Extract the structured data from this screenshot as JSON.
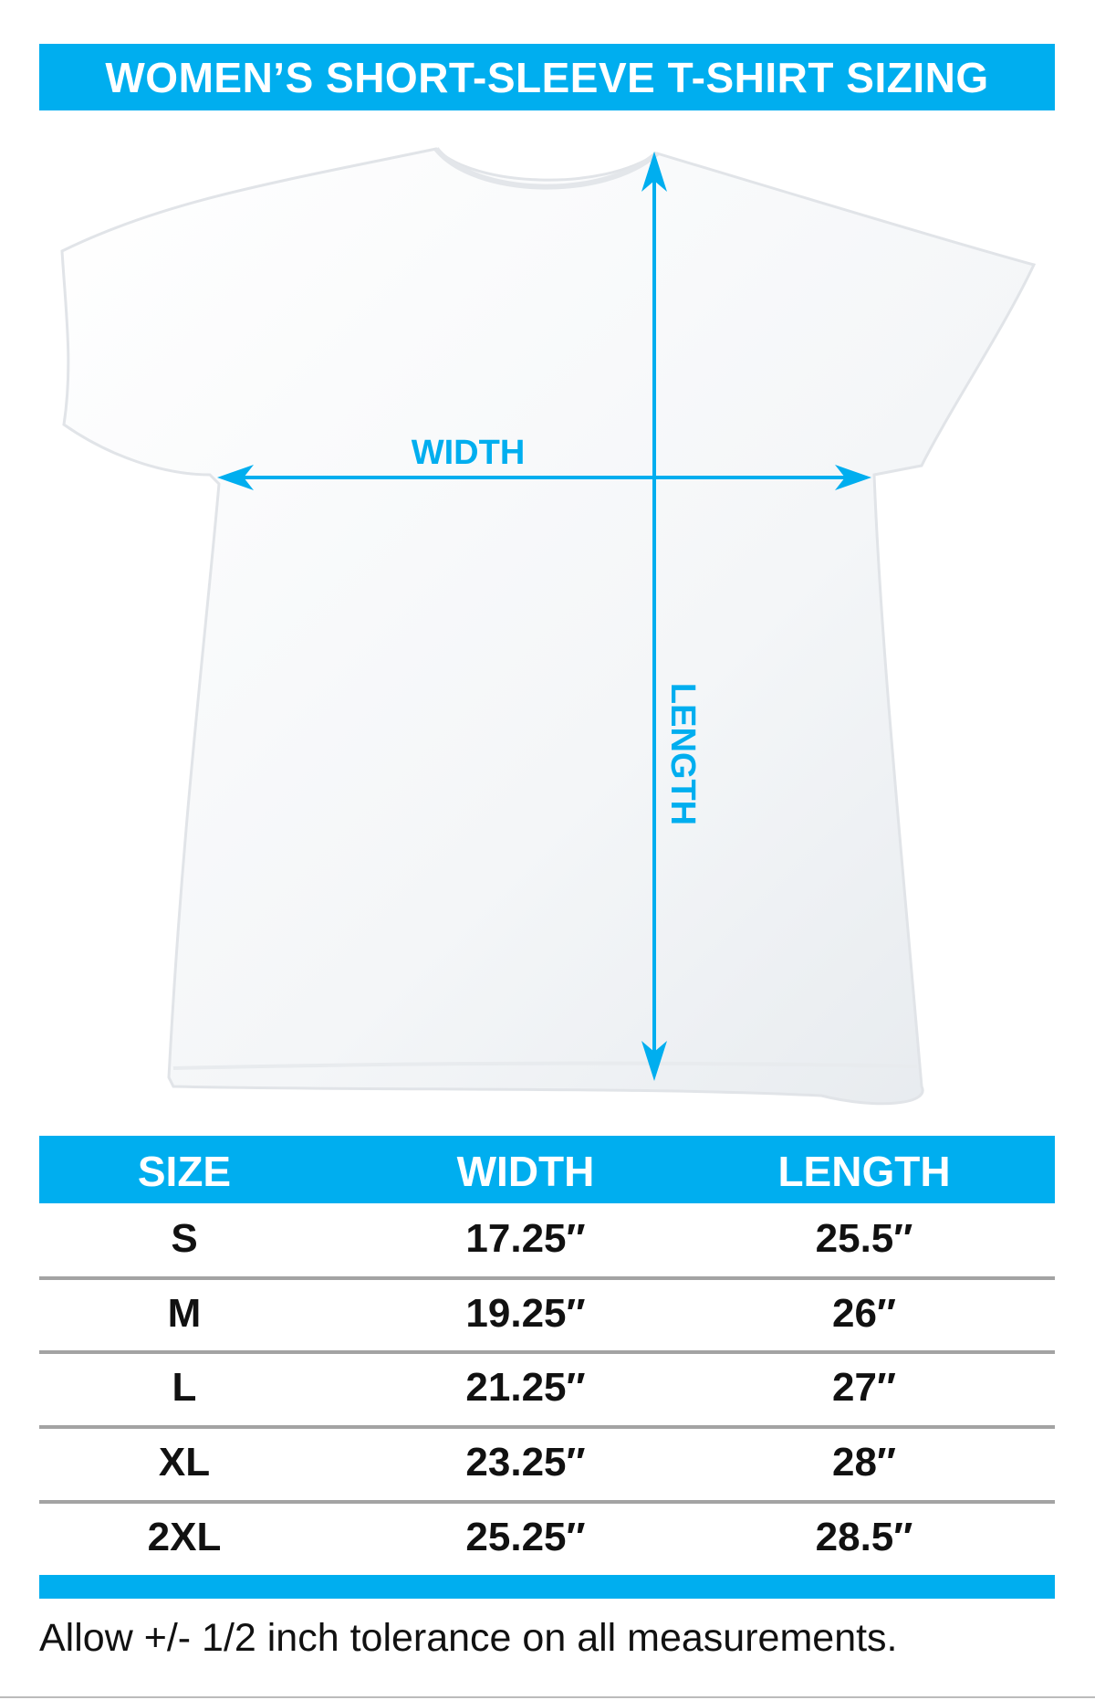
{
  "title": "WOMEN’S SHORT-SLEEVE T-SHIRT SIZING",
  "diagram": {
    "width_label": "WIDTH",
    "length_label": "LENGTH"
  },
  "table": {
    "headers": [
      "SIZE",
      "WIDTH",
      "LENGTH"
    ],
    "rows": [
      [
        "S",
        "17.25″",
        "25.5″"
      ],
      [
        "M",
        "19.25″",
        "26″"
      ],
      [
        "L",
        "21.25″",
        "27″"
      ],
      [
        "XL",
        "23.25″",
        "28″"
      ],
      [
        "2XL",
        "25.25″",
        "28.5″"
      ]
    ]
  },
  "footer": "Allow +/- 1/2 inch tolerance on all measurements.",
  "colors": {
    "accent": "#00aeef",
    "divider": "#a3a3a3"
  }
}
